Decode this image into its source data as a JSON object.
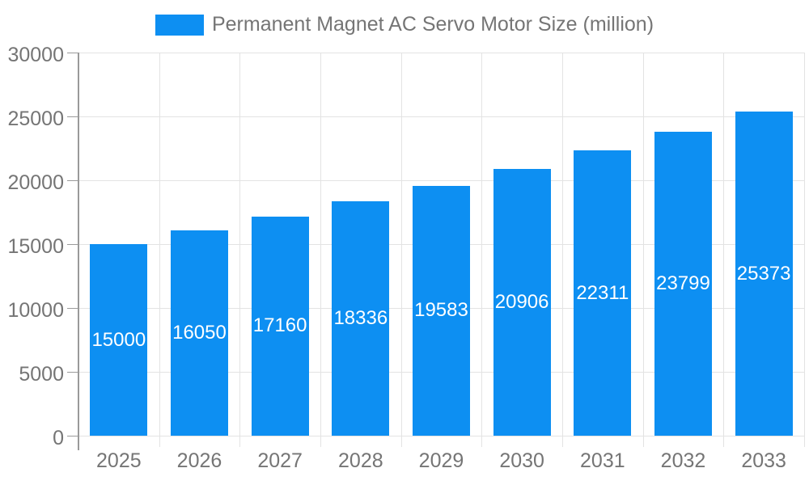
{
  "chart_data": {
    "type": "bar",
    "title": "Permanent Magnet AC Servo Motor Size (million)",
    "series_name": "Permanent Magnet AC Servo Motor Size (million)",
    "categories": [
      "2025",
      "2026",
      "2027",
      "2028",
      "2029",
      "2030",
      "2031",
      "2032",
      "2033"
    ],
    "values": [
      15000,
      16050,
      17160,
      18336,
      19583,
      20906,
      22311,
      23799,
      25373
    ],
    "xlabel": "",
    "ylabel": "",
    "ylim": [
      0,
      30000
    ],
    "y_ticks": [
      0,
      5000,
      10000,
      15000,
      20000,
      25000,
      30000
    ],
    "legend_position": "top",
    "grid": true,
    "value_labels_shown": true,
    "colors": {
      "bar": "#0d8ff2",
      "value_label": "#ffffff",
      "axis_text": "#757575",
      "axis_line": "#9a9a9a",
      "gridline": "#e3e3e3",
      "background": "#ffffff"
    }
  }
}
